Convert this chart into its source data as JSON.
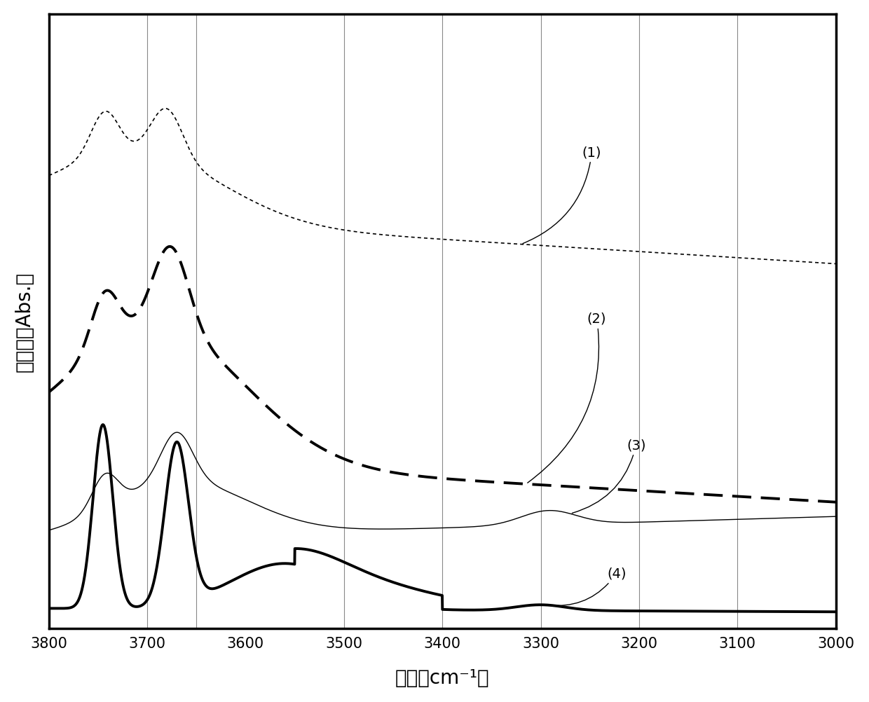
{
  "xlabel": "波数［cm⁻¹］",
  "ylabel": "吸光度［Abs.］",
  "xticks": [
    3800,
    3700,
    3600,
    3500,
    3400,
    3300,
    3200,
    3100,
    3000
  ],
  "grid_x": [
    3700,
    3650,
    3500,
    3400,
    3300,
    3200,
    3100
  ],
  "background_color": "#ffffff",
  "plot_bg": "#ffffff",
  "label_fontsize": 14,
  "tick_fontsize": 15,
  "axis_label_fontsize": 20
}
